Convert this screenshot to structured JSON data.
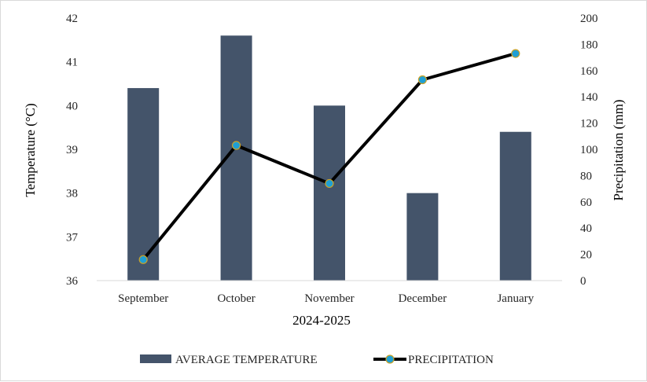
{
  "chart_data": {
    "type": "bar+line",
    "xlabel": "2024-2025",
    "categories": [
      "September",
      "October",
      "November",
      "December",
      "January"
    ],
    "series": [
      {
        "name": "AVERAGE TEMPERATURE",
        "type": "bar",
        "axis": "left",
        "color": "#44546a",
        "values": [
          40.4,
          41.6,
          40.0,
          38.0,
          39.4
        ]
      },
      {
        "name": "PRECIPITATION",
        "type": "line",
        "axis": "right",
        "color": "#000000",
        "marker_fill": "#1f9fd4",
        "marker_stroke": "#c9a227",
        "values": [
          16,
          103,
          74,
          153,
          173
        ]
      }
    ],
    "y_left": {
      "label": "Temperature (°C)",
      "min": 36,
      "max": 42,
      "step": 1,
      "ticks": [
        "36",
        "37",
        "38",
        "39",
        "40",
        "41",
        "42"
      ]
    },
    "y_right": {
      "label": "Precipitation (mm)",
      "min": 0,
      "max": 200,
      "step": 20,
      "ticks": [
        "0",
        "20",
        "40",
        "60",
        "80",
        "100",
        "120",
        "140",
        "160",
        "180",
        "200"
      ]
    },
    "grid": false,
    "legend": "bottom"
  }
}
